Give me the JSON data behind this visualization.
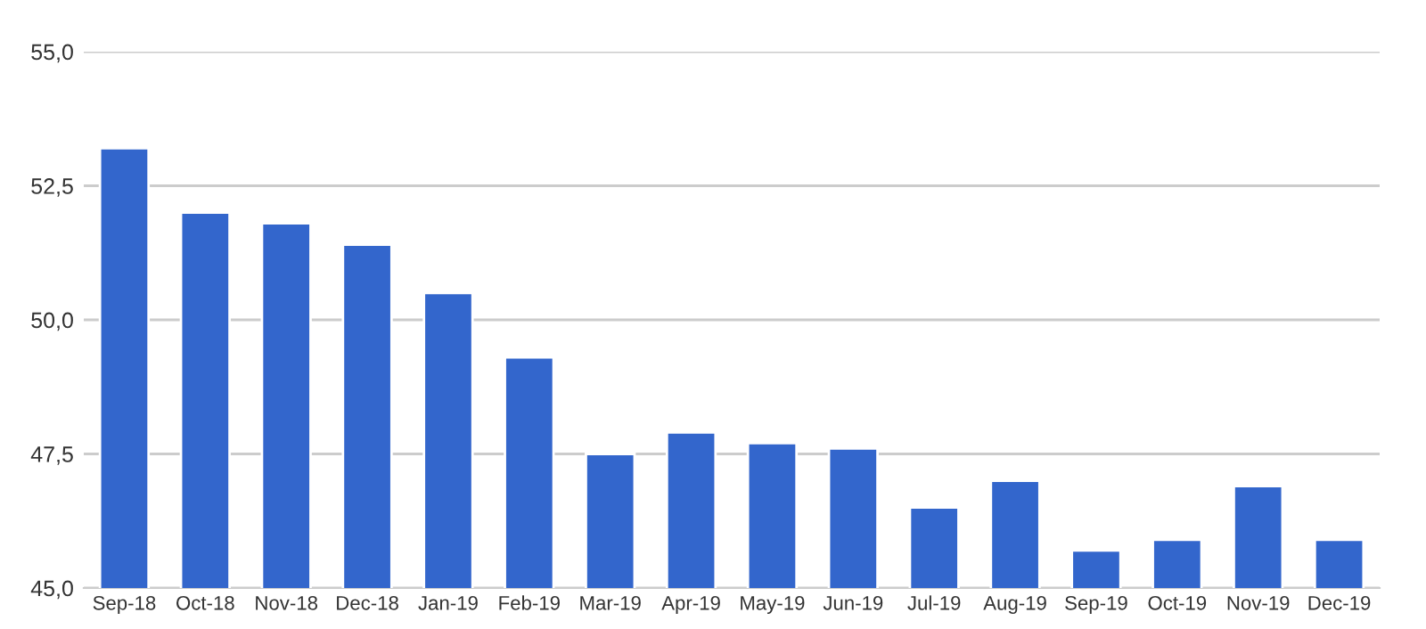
{
  "chart_data": {
    "type": "bar",
    "categories": [
      "Sep-18",
      "Oct-18",
      "Nov-18",
      "Dec-18",
      "Jan-19",
      "Feb-19",
      "Mar-19",
      "Apr-19",
      "May-19",
      "Jun-19",
      "Jul-19",
      "Aug-19",
      "Sep-19",
      "Oct-19",
      "Nov-19",
      "Dec-19"
    ],
    "values": [
      53.2,
      52.0,
      51.8,
      51.4,
      50.5,
      49.3,
      47.5,
      47.9,
      47.7,
      47.6,
      46.5,
      47.0,
      45.7,
      45.9,
      46.9,
      45.9
    ],
    "color": "#3366cc",
    "ylim": [
      45,
      55
    ],
    "yticks": [
      {
        "value": 45,
        "label": "45,0"
      },
      {
        "value": 47.5,
        "label": "47,5"
      },
      {
        "value": 50,
        "label": "50,0"
      },
      {
        "value": 52.5,
        "label": "52,5"
      },
      {
        "value": 55,
        "label": "55,0"
      }
    ],
    "grid": "y"
  }
}
